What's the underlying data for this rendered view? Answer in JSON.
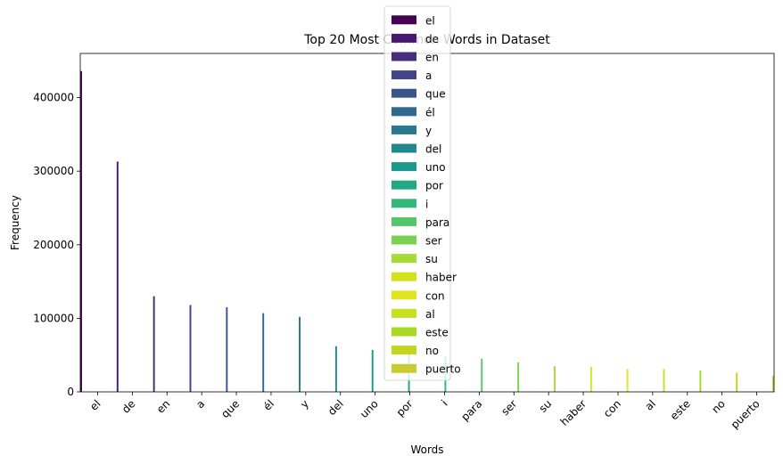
{
  "chart_data": {
    "type": "bar",
    "title": "Top 20 Most Common Words in Dataset",
    "xlabel": "Words",
    "ylabel": "Frequency",
    "ylim": [
      0,
      460000
    ],
    "yticks": [
      0,
      100000,
      200000,
      300000,
      400000
    ],
    "ytick_labels": [
      "0",
      "100000",
      "200000",
      "300000",
      "400000"
    ],
    "categories": [
      "el",
      "de",
      "en",
      "a",
      "que",
      "él",
      "y",
      "del",
      "uno",
      "por",
      "i",
      "para",
      "ser",
      "su",
      "haber",
      "con",
      "al",
      "este",
      "no",
      "puerto"
    ],
    "values": [
      436000,
      313000,
      130000,
      118000,
      115000,
      107000,
      102000,
      62000,
      57000,
      52000,
      48000,
      45000,
      40000,
      35000,
      34000,
      31000,
      31000,
      29000,
      26000,
      22000
    ],
    "colors": [
      "#440154",
      "#481a6c",
      "#472f7d",
      "#414487",
      "#39568c",
      "#31688e",
      "#2a788e",
      "#23888e",
      "#1f988b",
      "#22a884",
      "#35b779",
      "#54c568",
      "#7ad151",
      "#a5db36",
      "#d2e21b",
      "#e0e522",
      "#c7e020",
      "#a8d923",
      "#c2d520",
      "#c9cc2e"
    ],
    "legend": {
      "position": "upper center",
      "entries": [
        "el",
        "de",
        "en",
        "a",
        "que",
        "él",
        "y",
        "del",
        "uno",
        "por",
        "i",
        "para",
        "ser",
        "su",
        "haber",
        "con",
        "al",
        "este",
        "no",
        "puerto"
      ]
    },
    "grid": false
  }
}
